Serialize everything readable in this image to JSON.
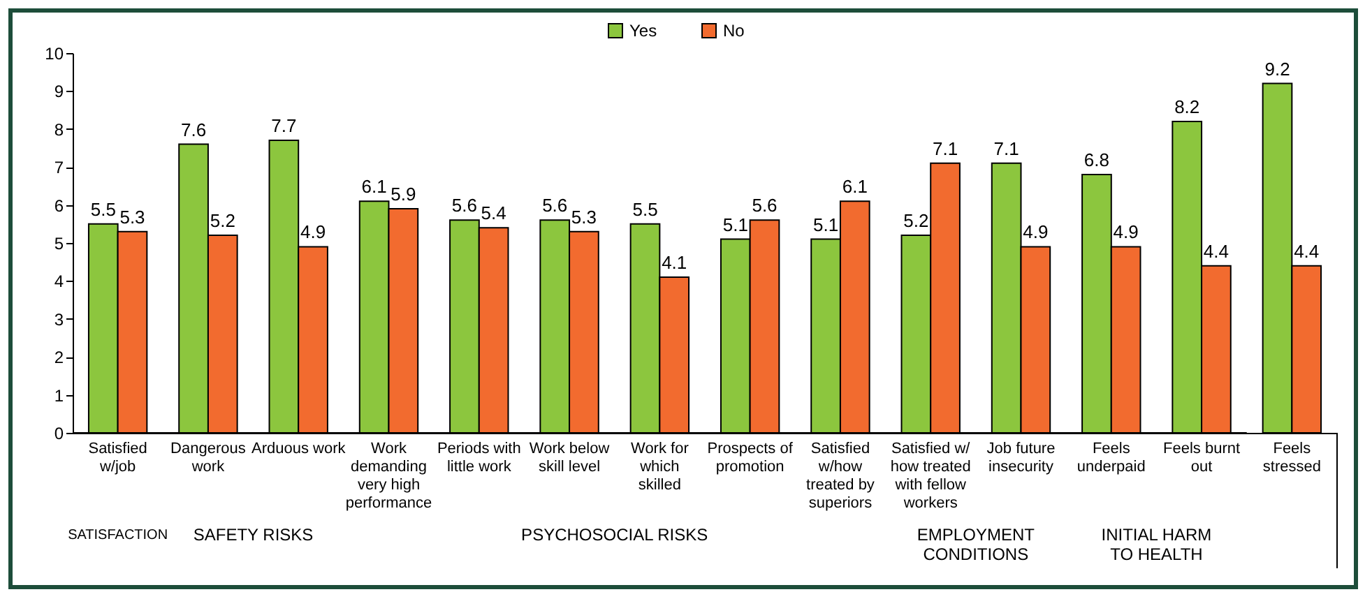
{
  "chart_data": {
    "type": "bar",
    "categories": [
      "Satisfied w/job",
      "Dangerous work",
      "Arduous work",
      "Work demanding very high performance",
      "Periods with little work",
      "Work below skill level",
      "Work for which skilled",
      "Prospects of promotion",
      "Satisfied w/how treated by superiors",
      "Satisfied w/ how treated with fellow workers",
      "Job future insecurity",
      "Feels underpaid",
      "Feels burnt out",
      "Feels stressed"
    ],
    "series": [
      {
        "name": "Yes",
        "color": "#8cc63e",
        "values": [
          5.5,
          7.6,
          7.7,
          6.1,
          5.6,
          5.6,
          5.5,
          5.1,
          5.1,
          5.2,
          7.1,
          6.8,
          8.2,
          9.2
        ]
      },
      {
        "name": "No",
        "color": "#f26b2f",
        "values": [
          5.3,
          5.2,
          4.9,
          5.9,
          5.4,
          5.3,
          4.1,
          5.6,
          6.1,
          7.1,
          4.9,
          4.9,
          4.4,
          4.4
        ]
      }
    ],
    "ylim": [
      0,
      10
    ],
    "yticks": [
      0,
      1,
      2,
      3,
      4,
      5,
      6,
      7,
      8,
      9,
      10
    ],
    "data_labels": true,
    "grid": false,
    "legend": "top",
    "annotations": [
      "SATISFACTION",
      "SAFETY RISKS",
      "PSYCHOSOCIAL RISKS",
      "EMPLOYMENT CONDITIONS",
      "INITIAL HARM TO HEALTH"
    ]
  }
}
